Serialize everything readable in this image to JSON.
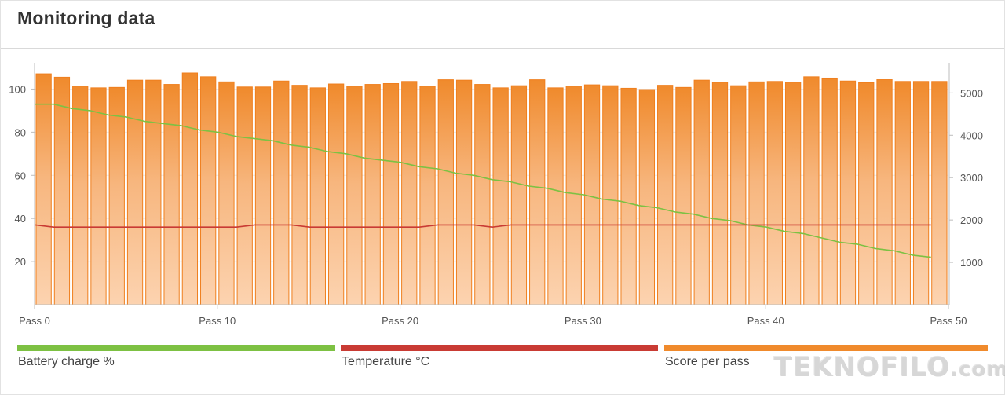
{
  "header": {
    "title": "Monitoring data"
  },
  "chart_data": {
    "type": "bar",
    "title": "",
    "xlabel": "",
    "ylabel": "",
    "x_tick_labels": [
      "Pass 0",
      "Pass 10",
      "Pass 20",
      "Pass 30",
      "Pass 40",
      "Pass 50"
    ],
    "x_tick_values": [
      0,
      10,
      20,
      30,
      40,
      50
    ],
    "y_left": {
      "ticks": [
        "20",
        "40",
        "60",
        "80",
        "100"
      ],
      "tick_values": [
        20,
        40,
        60,
        80,
        100
      ],
      "range": [
        0,
        110
      ]
    },
    "y_right": {
      "ticks": [
        "1000",
        "2000",
        "3000",
        "4000",
        "5000"
      ],
      "tick_values": [
        1000,
        2000,
        3000,
        4000,
        5000
      ],
      "range": [
        0,
        5600
      ]
    },
    "grid": true,
    "legend_position": "bottom",
    "colors": {
      "battery": "#7dc143",
      "temperature": "#c93b34",
      "score": "#f08a2c"
    },
    "series": [
      {
        "name": "Score per pass",
        "kind": "bar",
        "axis": "right",
        "values": [
          5450,
          5370,
          5160,
          5120,
          5130,
          5300,
          5300,
          5200,
          5470,
          5380,
          5260,
          5140,
          5140,
          5280,
          5180,
          5120,
          5210,
          5160,
          5200,
          5220,
          5270,
          5160,
          5310,
          5300,
          5200,
          5120,
          5170,
          5310,
          5120,
          5160,
          5190,
          5170,
          5110,
          5080,
          5180,
          5130,
          5300,
          5250,
          5170,
          5260,
          5270,
          5250,
          5380,
          5350,
          5280,
          5240,
          5320,
          5270,
          5270,
          5270
        ]
      },
      {
        "name": "Battery charge %",
        "kind": "line",
        "axis": "left",
        "x": [
          0,
          1,
          2,
          3,
          4,
          5,
          6,
          7,
          8,
          9,
          10,
          11,
          12,
          13,
          14,
          15,
          16,
          17,
          18,
          19,
          20,
          21,
          22,
          23,
          24,
          25,
          26,
          27,
          28,
          29,
          30,
          31,
          32,
          33,
          34,
          35,
          36,
          37,
          38,
          39,
          40,
          41,
          42,
          43,
          44,
          45,
          46,
          47,
          48,
          49
        ],
        "values": [
          93,
          93,
          91,
          90,
          88,
          87,
          85,
          84,
          83,
          81,
          80,
          78,
          77,
          76,
          74,
          73,
          71,
          70,
          68,
          67,
          66,
          64,
          63,
          61,
          60,
          58,
          57,
          55,
          54,
          52,
          51,
          49,
          48,
          46,
          45,
          43,
          42,
          40,
          39,
          37,
          36,
          34,
          33,
          31,
          29,
          28,
          26,
          25,
          23,
          22
        ]
      },
      {
        "name": "Temperature °C",
        "kind": "line",
        "axis": "left",
        "x": [
          0,
          1,
          2,
          3,
          4,
          5,
          6,
          7,
          8,
          9,
          10,
          11,
          12,
          13,
          14,
          15,
          16,
          17,
          18,
          19,
          20,
          21,
          22,
          23,
          24,
          25,
          26,
          27,
          28,
          29,
          30,
          31,
          32,
          33,
          34,
          35,
          36,
          37,
          38,
          39,
          40,
          41,
          42,
          43,
          44,
          45,
          46,
          47,
          48,
          49
        ],
        "values": [
          37,
          36,
          36,
          36,
          36,
          36,
          36,
          36,
          36,
          36,
          36,
          36,
          37,
          37,
          37,
          36,
          36,
          36,
          36,
          36,
          36,
          36,
          37,
          37,
          37,
          36,
          37,
          37,
          37,
          37,
          37,
          37,
          37,
          37,
          37,
          37,
          37,
          37,
          37,
          37,
          37,
          37,
          37,
          37,
          37,
          37,
          37,
          37,
          37,
          37
        ]
      }
    ]
  },
  "legend": [
    {
      "label": "Battery charge %",
      "color": "#7dc143"
    },
    {
      "label": "Temperature °C",
      "color": "#c93b34"
    },
    {
      "label": "Score per pass",
      "color": "#f08a2c"
    }
  ],
  "watermark": {
    "text": "TEKNOFILO",
    "suffix": ".com"
  }
}
